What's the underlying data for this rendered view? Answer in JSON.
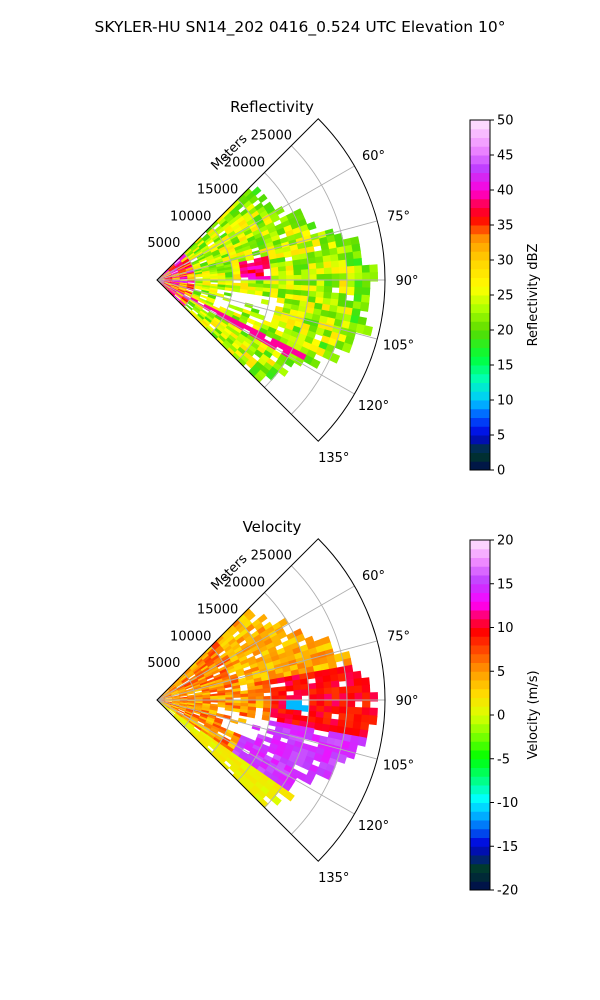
{
  "figure": {
    "suptitle": "SKYLER-HU  SN14_202  0416_0.524 UTC Elevation 10°"
  },
  "chart_data": [
    {
      "type": "heatmap",
      "title": "Reflectivity",
      "projection": "polar-sector",
      "range_axis_label": "Meters",
      "range_ticks": [
        5000,
        10000,
        15000,
        20000,
        25000
      ],
      "range_max": 30000,
      "azimuth_range_deg": [
        45,
        135
      ],
      "azimuth_ticks": [
        "60°",
        "75°",
        "90°",
        "105°",
        "120°",
        "135°"
      ],
      "colorbar": {
        "label": "Reflectivity dBZ",
        "ticks": [
          0,
          5,
          10,
          15,
          20,
          25,
          30,
          35,
          40,
          45,
          50
        ],
        "range": [
          0,
          50
        ]
      },
      "dominant_values_dbz": "mostly 15–30 dBZ, cores 35–45 dBZ near 80°–95° and along 120° radial"
    },
    {
      "type": "heatmap",
      "title": "Velocity",
      "projection": "polar-sector",
      "range_axis_label": "Meters",
      "range_ticks": [
        5000,
        10000,
        15000,
        20000,
        25000
      ],
      "range_max": 30000,
      "azimuth_range_deg": [
        45,
        135
      ],
      "azimuth_ticks": [
        "60°",
        "75°",
        "90°",
        "105°",
        "120°",
        "135°"
      ],
      "colorbar": {
        "label": "Velocity (m/s)",
        "ticks": [
          -20,
          -15,
          -10,
          -5,
          0,
          5,
          10,
          15,
          20
        ],
        "range": [
          -20,
          20
        ]
      },
      "dominant_values_ms": "mostly 0–10 m/s west of 100°, 13–17 m/s east/south, isolated -10 m/s cells"
    }
  ]
}
